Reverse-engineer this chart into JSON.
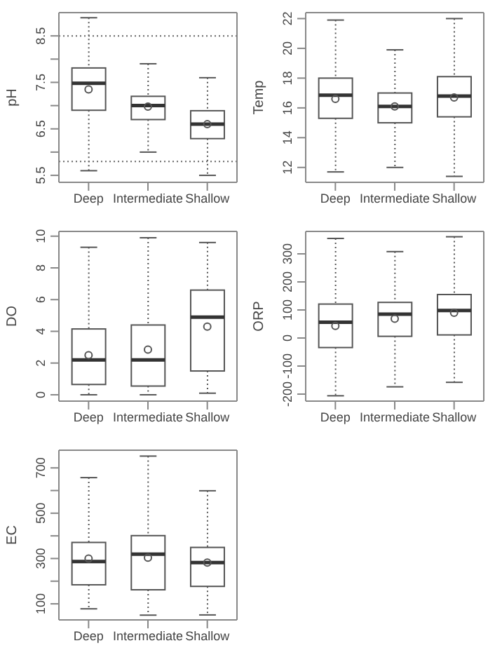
{
  "chart_data": [
    {
      "type": "box",
      "ylabel": "pH",
      "categories": [
        "Deep",
        "Intermediate",
        "Shallow"
      ],
      "color": "#555555",
      "boxes": [
        {
          "low": 5.6,
          "q1": 6.9,
          "median": 7.48,
          "q3": 7.81,
          "high": 8.89,
          "mean": 7.35
        },
        {
          "low": 6.0,
          "q1": 6.7,
          "median": 7.0,
          "q3": 7.2,
          "high": 7.9,
          "mean": 6.98
        },
        {
          "low": 5.5,
          "q1": 6.29,
          "median": 6.6,
          "q3": 6.89,
          "high": 7.6,
          "mean": 6.6
        }
      ],
      "ylim": [
        5.35,
        9.0
      ],
      "yticks": [
        5.5,
        {
          "value": 6,
          "label": null
        },
        6.5,
        {
          "value": 7,
          "label": null
        },
        7.5,
        {
          "value": 8,
          "label": null
        },
        8.5
      ],
      "ref_lines": [
        {
          "axis": "y",
          "value": 8.5,
          "line_style": "dotted"
        },
        {
          "axis": "y",
          "value": 5.8,
          "line_style": "dotted"
        }
      ]
    },
    {
      "type": "box",
      "ylabel": "Temp",
      "categories": [
        "Deep",
        "Intermediate",
        "Shallow"
      ],
      "color": "#555555",
      "boxes": [
        {
          "low": 11.7,
          "q1": 15.3,
          "median": 16.85,
          "q3": 18.0,
          "high": 21.9,
          "mean": 16.6
        },
        {
          "low": 12.0,
          "q1": 15.0,
          "median": 16.1,
          "q3": 17.0,
          "high": 19.9,
          "mean": 16.1
        },
        {
          "low": 11.4,
          "q1": 15.4,
          "median": 16.8,
          "q3": 18.1,
          "high": 22.0,
          "mean": 16.7
        }
      ],
      "ylim": [
        11.0,
        22.4
      ],
      "yticks": [
        12,
        14,
        16,
        18,
        20,
        22
      ]
    },
    {
      "type": "box",
      "ylabel": "DO",
      "categories": [
        "Deep",
        "Intermediate",
        "Shallow"
      ],
      "color": "#555555",
      "boxes": [
        {
          "low": 0,
          "q1": 0.65,
          "median": 2.2,
          "q3": 4.15,
          "high": 9.3,
          "mean": 2.5
        },
        {
          "low": 0,
          "q1": 0.55,
          "median": 2.2,
          "q3": 4.4,
          "high": 9.9,
          "mean": 2.85
        },
        {
          "low": 0.1,
          "q1": 1.5,
          "median": 4.9,
          "q3": 6.6,
          "high": 9.6,
          "mean": 4.3
        }
      ],
      "ylim": [
        -0.4,
        10.3
      ],
      "yticks": [
        0,
        2,
        4,
        6,
        8,
        10
      ]
    },
    {
      "type": "box",
      "ylabel": "ORP",
      "categories": [
        "Deep",
        "Intermediate",
        "Shallow"
      ],
      "color": "#555555",
      "boxes": [
        {
          "low": -206,
          "q1": -34,
          "median": 56,
          "q3": 121,
          "high": 355,
          "mean": 43
        },
        {
          "low": -174,
          "q1": 6,
          "median": 85,
          "q3": 127,
          "high": 308,
          "mean": 69
        },
        {
          "low": -158,
          "q1": 11,
          "median": 98,
          "q3": 155,
          "high": 361,
          "mean": 90
        }
      ],
      "ylim": [
        -225,
        380
      ],
      "yticks": [
        -200,
        -100,
        0,
        100,
        200,
        300
      ]
    },
    {
      "type": "box",
      "ylabel": "EC",
      "categories": [
        "Deep",
        "Intermediate",
        "Shallow"
      ],
      "color": "#555555",
      "boxes": [
        {
          "low": 78,
          "q1": 184,
          "median": 287,
          "q3": 371,
          "high": 657,
          "mean": 300
        },
        {
          "low": 50,
          "q1": 162,
          "median": 319,
          "q3": 401,
          "high": 752,
          "mean": 304
        },
        {
          "low": 51,
          "q1": 177,
          "median": 282,
          "q3": 349,
          "high": 599,
          "mean": 282
        }
      ],
      "ylim": [
        29,
        778
      ],
      "yticks": [
        100,
        {
          "value": 200,
          "label": null
        },
        300,
        {
          "value": 400,
          "label": null
        },
        500,
        {
          "value": 600,
          "label": null
        },
        700
      ]
    }
  ]
}
